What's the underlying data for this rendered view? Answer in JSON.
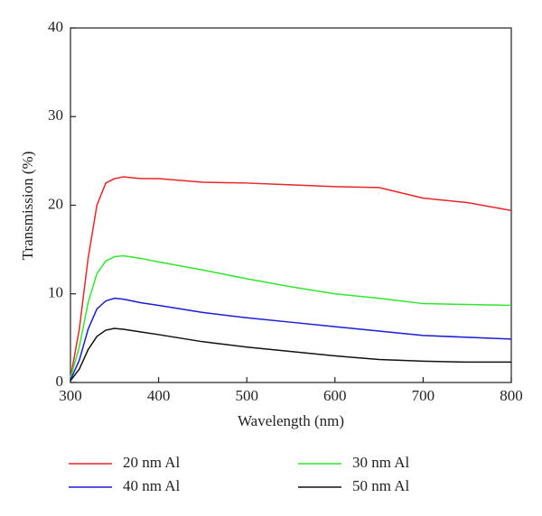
{
  "chart_data": {
    "type": "line",
    "x_label": "Wavelength (nm)",
    "y_label": "Transmission (%)",
    "x": [
      300,
      310,
      320,
      330,
      340,
      350,
      360,
      380,
      400,
      450,
      500,
      550,
      600,
      650,
      700,
      750,
      800
    ],
    "series": [
      {
        "name": "20 nm Al",
        "color": "#e8262a",
        "values": [
          0.5,
          6,
          14,
          20,
          22.5,
          23,
          23.2,
          23,
          23,
          22.6,
          22.5,
          22.3,
          22.1,
          22,
          20.8,
          20.3,
          19.4
        ]
      },
      {
        "name": "30 nm Al",
        "color": "#2ee82e",
        "values": [
          0.5,
          4,
          9,
          12.3,
          13.7,
          14.2,
          14.3,
          14,
          13.6,
          12.7,
          11.7,
          10.8,
          10,
          9.5,
          8.9,
          8.8,
          8.7
        ]
      },
      {
        "name": "40 nm Al",
        "color": "#1c1cd6",
        "values": [
          0.3,
          2.5,
          6,
          8.3,
          9.2,
          9.5,
          9.4,
          9,
          8.7,
          7.9,
          7.3,
          6.8,
          6.3,
          5.8,
          5.3,
          5.1,
          4.9
        ]
      },
      {
        "name": "50 nm Al",
        "color": "#111111",
        "values": [
          0.2,
          1.5,
          3.7,
          5.2,
          5.9,
          6.1,
          6,
          5.7,
          5.4,
          4.6,
          4,
          3.5,
          3,
          2.6,
          2.4,
          2.3,
          2.3
        ]
      }
    ],
    "xlim": [
      300,
      800
    ],
    "xticks": [
      300,
      400,
      500,
      600,
      700,
      800
    ],
    "ylim": [
      0,
      40
    ],
    "yticks": [
      0,
      10,
      20,
      30,
      40
    ]
  }
}
